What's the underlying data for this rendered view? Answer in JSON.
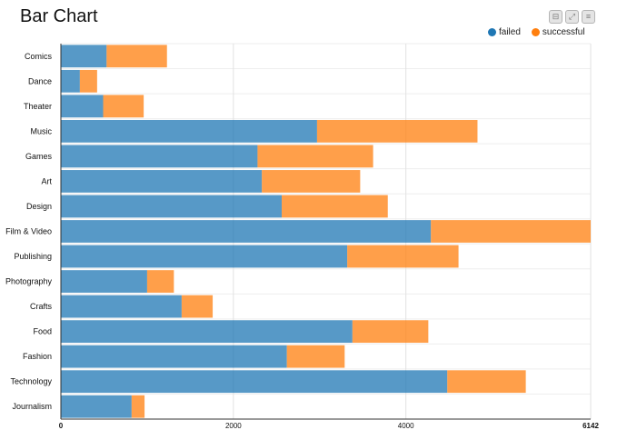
{
  "title": "Bar Chart",
  "toolbar": [
    {
      "name": "minimize-icon",
      "glyph": "⊟"
    },
    {
      "name": "expand-icon",
      "glyph": "⤢"
    },
    {
      "name": "menu-icon",
      "glyph": "≡"
    }
  ],
  "legend": [
    {
      "label": "failed",
      "color": "#1f77b4"
    },
    {
      "label": "successful",
      "color": "#ff7f0e"
    }
  ],
  "chart_data": {
    "type": "bar",
    "orientation": "horizontal",
    "stacked": true,
    "title": "Bar Chart",
    "categories": [
      "Comics",
      "Dance",
      "Theater",
      "Music",
      "Games",
      "Art",
      "Design",
      "Film & Video",
      "Publishing",
      "Photography",
      "Crafts",
      "Food",
      "Fashion",
      "Technology",
      "Journalism"
    ],
    "series": [
      {
        "name": "failed",
        "color": "#1f77b4",
        "values": [
          530,
          220,
          490,
          2970,
          2280,
          2330,
          2560,
          4290,
          3320,
          1000,
          1400,
          3380,
          2620,
          4480,
          820
        ]
      },
      {
        "name": "successful",
        "color": "#ff7f0e",
        "values": [
          700,
          200,
          470,
          1860,
          1340,
          1140,
          1230,
          1852,
          1290,
          310,
          360,
          880,
          670,
          910,
          150
        ]
      }
    ],
    "xticks": [
      0,
      2000,
      4000,
      6142
    ],
    "xlim": [
      0,
      6142
    ],
    "grid": true,
    "legend_position": "top-right"
  }
}
